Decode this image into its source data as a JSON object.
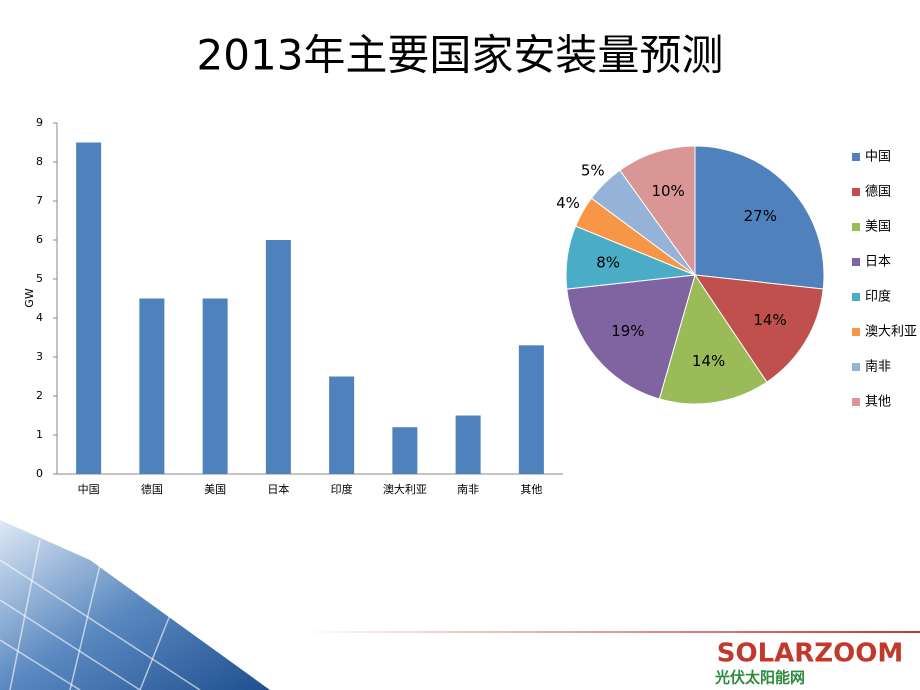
{
  "title": "2013年主要国家安装量预测",
  "logo": {
    "name": "SOLARZOOM",
    "tagline": "光伏太阳能网"
  },
  "chart_data": [
    {
      "type": "bar",
      "ylabel": "GW",
      "categories": [
        "中国",
        "德国",
        "美国",
        "日本",
        "印度",
        "澳大利亚",
        "南非",
        "其他"
      ],
      "values": [
        8.5,
        4.5,
        4.5,
        6,
        2.5,
        1.2,
        1.5,
        3.3
      ],
      "color": "#4f81bd",
      "ylim": [
        0,
        9
      ],
      "yticks": [
        0,
        1,
        2,
        3,
        4,
        5,
        6,
        7,
        8,
        9
      ],
      "grid": false
    },
    {
      "type": "pie",
      "categories": [
        "中国",
        "德国",
        "美国",
        "日本",
        "印度",
        "澳大利亚",
        "南非",
        "其他"
      ],
      "values": [
        27,
        14,
        14,
        19,
        8,
        4,
        5,
        10
      ],
      "value_labels": [
        "27%",
        "14%",
        "14%",
        "19%",
        "8%",
        "4%",
        "5%",
        "10%"
      ],
      "colors": [
        "#4f81bd",
        "#c0504d",
        "#9bbb59",
        "#8064a2",
        "#4bacc6",
        "#f79646",
        "#95b3d7",
        "#d99694"
      ],
      "legend": "right"
    }
  ]
}
